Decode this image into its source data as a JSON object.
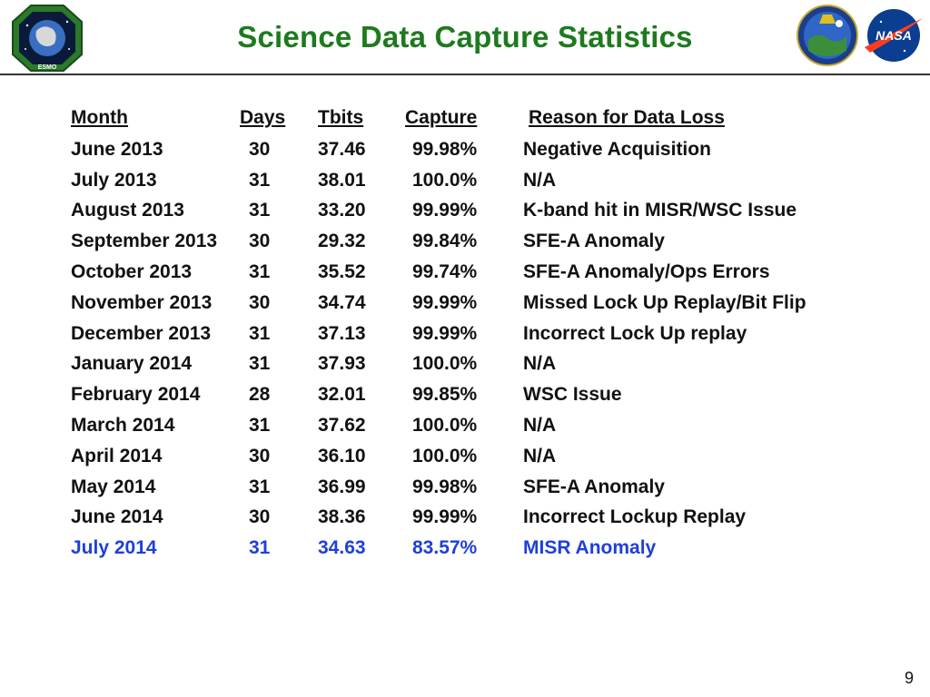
{
  "header": {
    "title": "Science Data Capture Statistics",
    "logos": {
      "left": {
        "icon": "esmo-mission-patch",
        "text": "ESMO"
      },
      "right_1": {
        "icon": "terra-mission-patch"
      },
      "right_2": {
        "icon": "nasa-meatball",
        "text": "NASA"
      }
    }
  },
  "table": {
    "headers": [
      "Month",
      "Days",
      "Tbits",
      "Capture",
      "Reason for Data Loss"
    ],
    "rows": [
      [
        "June 2013",
        "30",
        "37.46",
        "99.98%",
        "Negative Acquisition"
      ],
      [
        "July  2013",
        "31",
        "38.01",
        "100.0%",
        "N/A"
      ],
      [
        "August  2013",
        "31",
        "33.20",
        "99.99%",
        "K-band hit in MISR/WSC Issue"
      ],
      [
        "September 2013",
        "30",
        "29.32",
        "99.84%",
        "SFE-A Anomaly"
      ],
      [
        "October 2013",
        "31",
        "35.52",
        "99.74%",
        "SFE-A Anomaly/Ops Errors"
      ],
      [
        "November 2013",
        "30",
        "34.74",
        "99.99%",
        "Missed Lock Up Replay/Bit Flip"
      ],
      [
        "December 2013",
        "31",
        "37.13",
        "99.99%",
        "Incorrect Lock Up replay"
      ],
      [
        "January 2014",
        "31",
        "37.93",
        "100.0%",
        "N/A"
      ],
      [
        "February 2014",
        "28",
        "32.01",
        "99.85%",
        "WSC Issue"
      ],
      [
        "March 2014",
        "31",
        "37.62",
        "100.0%",
        "N/A"
      ],
      [
        "April 2014",
        "30",
        "36.10",
        "100.0%",
        "N/A"
      ],
      [
        "May 2014",
        "31",
        "36.99",
        "99.98%",
        "SFE-A Anomaly"
      ],
      [
        "June 2014",
        "30",
        "38.36",
        "99.99%",
        "Incorrect Lockup Replay"
      ],
      [
        "July 2014",
        "31",
        "34.63",
        "83.57%",
        "MISR Anomaly"
      ]
    ],
    "highlight_row_color": "#1f3fd9",
    "text_color": "#111111"
  },
  "colors": {
    "title": "#1e7a1e"
  },
  "footer": {
    "page_number": "9"
  }
}
